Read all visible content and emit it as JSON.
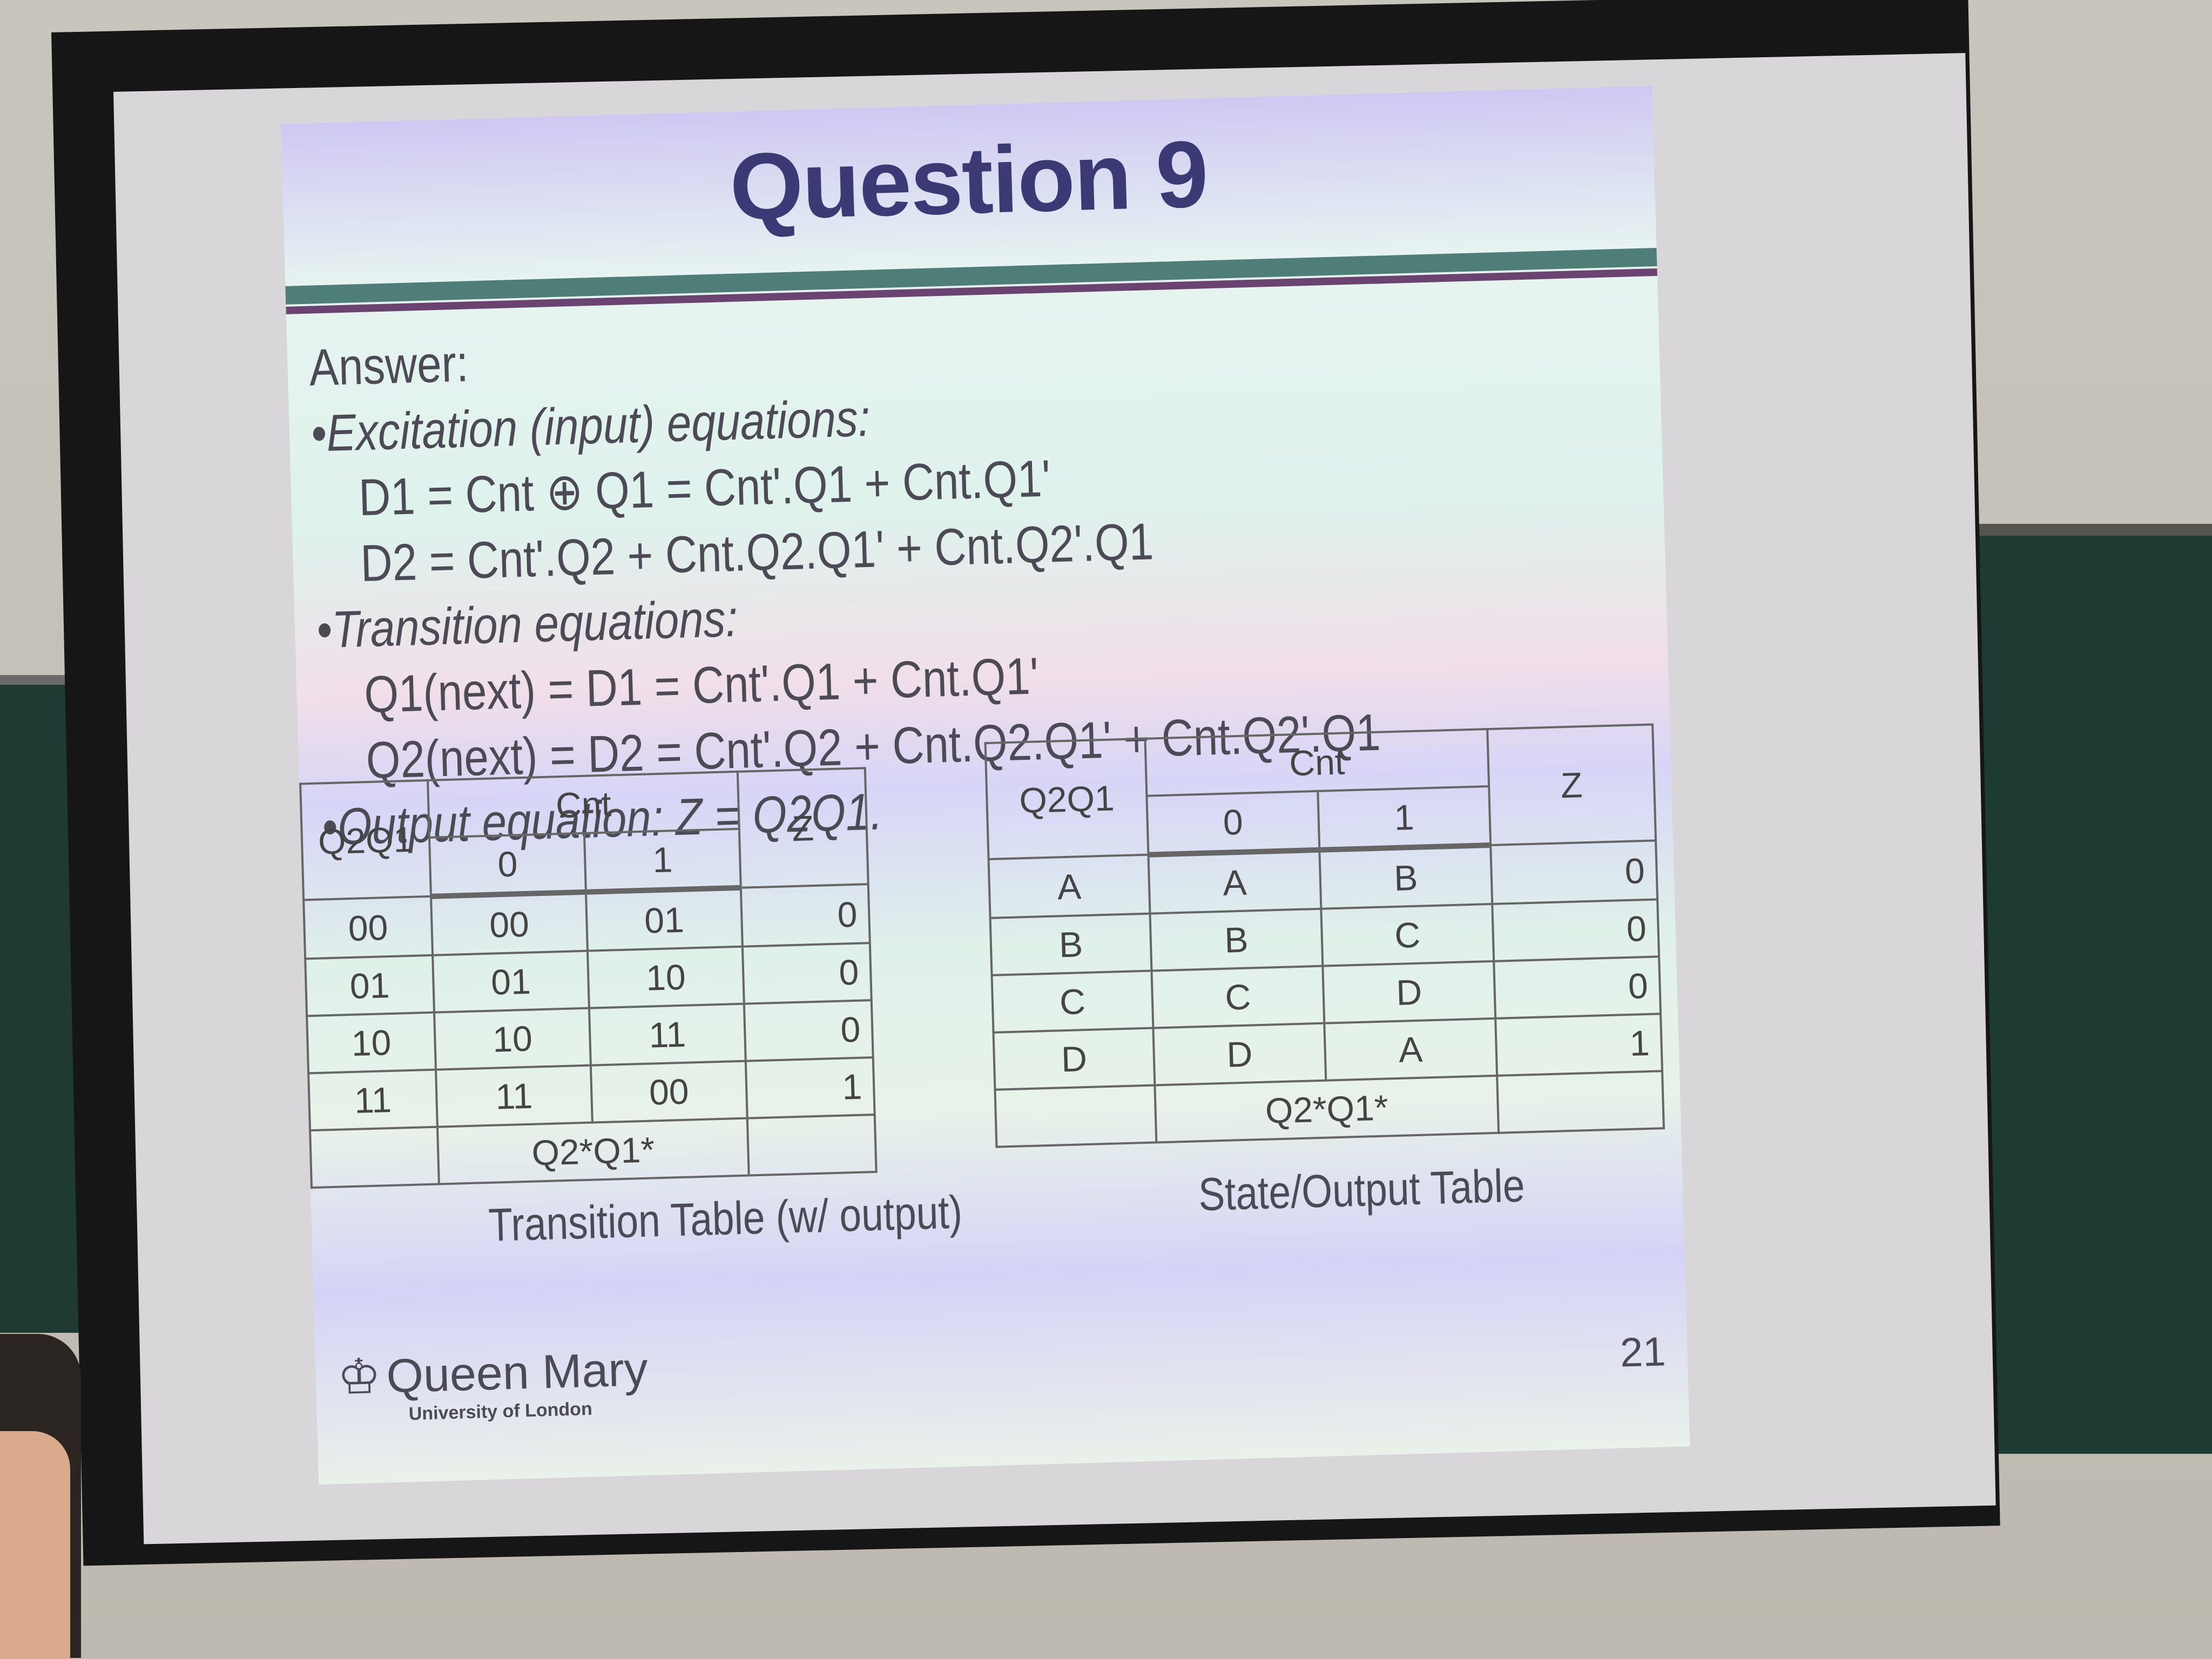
{
  "slide": {
    "title": "Question 9",
    "answer_label": "Answer:",
    "excitation_heading": "•Excitation (input) equations:",
    "d1_equation": "D1 = Cnt ⊕ Q1 = Cnt'.Q1 + Cnt.Q1'",
    "d2_equation": "D2 = Cnt'.Q2 + Cnt.Q2.Q1' + Cnt.Q2'.Q1",
    "transition_heading": "•Transition equations:",
    "q1_next": "Q1(next) = D1 = Cnt'.Q1 + Cnt.Q1'",
    "q2_next": "Q2(next) = D2 = Cnt'.Q2 + Cnt.Q2.Q1' + Cnt.Q2'.Q1",
    "output_equation": "•Output equation: Z = Q2Q1.",
    "logo_text": "Queen Mary",
    "logo_subtext": "University of London",
    "page_number": "21"
  },
  "transition_table": {
    "caption": "Transition Table (w/ output)",
    "state_header": "Q2Q1",
    "input_header": "Cnt",
    "input_values": [
      "0",
      "1"
    ],
    "output_header": "Z",
    "footer": "Q2*Q1*",
    "rows": [
      {
        "state": "00",
        "c0": "00",
        "c1": "01",
        "z": "0"
      },
      {
        "state": "01",
        "c0": "01",
        "c1": "10",
        "z": "0"
      },
      {
        "state": "10",
        "c0": "10",
        "c1": "11",
        "z": "0"
      },
      {
        "state": "11",
        "c0": "11",
        "c1": "00",
        "z": "1"
      }
    ]
  },
  "state_table": {
    "caption": "State/Output Table",
    "state_header": "Q2Q1",
    "input_header": "Cnt",
    "input_values": [
      "0",
      "1"
    ],
    "output_header": "Z",
    "footer": "Q2*Q1*",
    "rows": [
      {
        "state": "A",
        "c0": "A",
        "c1": "B",
        "z": "0"
      },
      {
        "state": "B",
        "c0": "B",
        "c1": "C",
        "z": "0"
      },
      {
        "state": "C",
        "c0": "C",
        "c1": "D",
        "z": "0"
      },
      {
        "state": "D",
        "c0": "D",
        "c1": "A",
        "z": "1"
      }
    ]
  }
}
